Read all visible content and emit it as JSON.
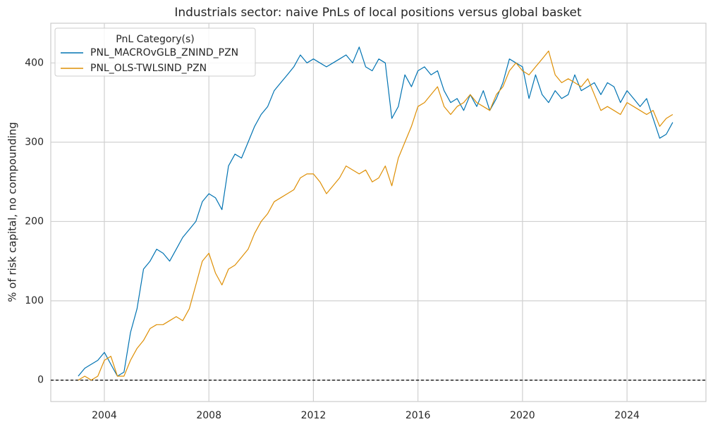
{
  "chart_data": {
    "type": "line",
    "title": "Industrials sector: naive PnLs of local positions versus global basket",
    "y_label": "% of risk capital, no compounding",
    "legend_title": "PnL Category(s)",
    "legend": "upper left",
    "grid": true,
    "hlines": [
      0
    ],
    "xlim": [
      2001.95,
      2027.02
    ],
    "ylim": [
      -27,
      450
    ],
    "xticks": [
      2004,
      2008,
      2012,
      2016,
      2020,
      2024
    ],
    "yticks": [
      0,
      100,
      200,
      300,
      400
    ],
    "x": [
      2003,
      2003.25,
      2003.5,
      2003.75,
      2004,
      2004.25,
      2004.5,
      2004.75,
      2005,
      2005.25,
      2005.5,
      2005.75,
      2006,
      2006.25,
      2006.5,
      2006.75,
      2007,
      2007.25,
      2007.5,
      2007.75,
      2008,
      2008.25,
      2008.5,
      2008.75,
      2009,
      2009.25,
      2009.5,
      2009.75,
      2010,
      2010.25,
      2010.5,
      2010.75,
      2011,
      2011.25,
      2011.5,
      2011.75,
      2012,
      2012.25,
      2012.5,
      2012.75,
      2013,
      2013.25,
      2013.5,
      2013.75,
      2014,
      2014.25,
      2014.5,
      2014.75,
      2015,
      2015.25,
      2015.5,
      2015.75,
      2016,
      2016.25,
      2016.5,
      2016.75,
      2017,
      2017.25,
      2017.5,
      2017.75,
      2018,
      2018.25,
      2018.5,
      2018.75,
      2019,
      2019.25,
      2019.5,
      2019.75,
      2020,
      2020.25,
      2020.5,
      2020.75,
      2021,
      2021.25,
      2021.5,
      2021.75,
      2022,
      2022.25,
      2022.5,
      2022.75,
      2023,
      2023.25,
      2023.5,
      2023.75,
      2024,
      2024.25,
      2024.5,
      2024.75,
      2025,
      2025.25,
      2025.5,
      2025.75
    ],
    "series": [
      {
        "name": "PNL_MACROvGLB_ZNIND_PZN",
        "color": "#0173b2",
        "values": [
          5,
          15,
          20,
          25,
          35,
          20,
          5,
          10,
          60,
          90,
          140,
          150,
          165,
          160,
          150,
          165,
          180,
          190,
          200,
          225,
          235,
          230,
          215,
          270,
          285,
          280,
          300,
          320,
          335,
          345,
          365,
          375,
          385,
          395,
          410,
          400,
          405,
          400,
          395,
          400,
          405,
          410,
          400,
          420,
          395,
          390,
          405,
          400,
          330,
          345,
          385,
          370,
          390,
          395,
          385,
          390,
          365,
          350,
          355,
          340,
          360,
          345,
          365,
          340,
          355,
          375,
          405,
          400,
          395,
          355,
          385,
          360,
          350,
          365,
          355,
          360,
          385,
          365,
          370,
          375,
          360,
          375,
          370,
          350,
          365,
          355,
          345,
          355,
          330,
          305,
          310,
          325
        ]
      },
      {
        "name": "PNL_OLS-TWLSIND_PZN",
        "color": "#de8f05",
        "values": [
          0,
          5,
          0,
          5,
          25,
          30,
          5,
          5,
          25,
          40,
          50,
          65,
          70,
          70,
          75,
          80,
          75,
          90,
          120,
          150,
          160,
          135,
          120,
          140,
          145,
          155,
          165,
          185,
          200,
          210,
          225,
          230,
          235,
          240,
          255,
          260,
          260,
          250,
          235,
          245,
          255,
          270,
          265,
          260,
          265,
          250,
          255,
          270,
          245,
          280,
          300,
          320,
          345,
          350,
          360,
          370,
          345,
          335,
          345,
          350,
          360,
          350,
          345,
          340,
          360,
          370,
          390,
          400,
          390,
          385,
          395,
          405,
          415,
          385,
          375,
          380,
          375,
          370,
          380,
          360,
          340,
          345,
          340,
          335,
          350,
          345,
          340,
          335,
          340,
          320,
          330,
          335
        ]
      }
    ]
  }
}
